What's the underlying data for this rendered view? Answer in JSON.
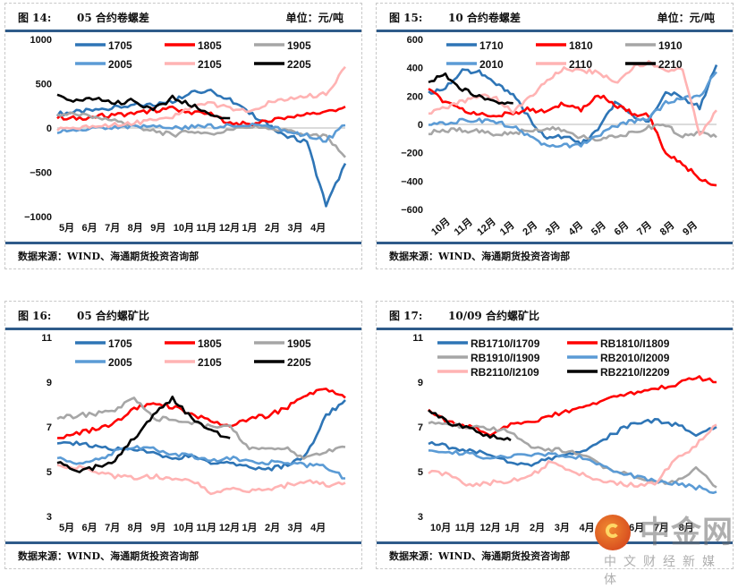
{
  "source_text": "数据来源：WIND、海通期货投资咨询部",
  "watermark": {
    "brand": "中金网",
    "sub": "中文财经新媒体",
    "overlay": "海通期货"
  },
  "chart_data": [
    {
      "id": "fig14",
      "figure_no": "图 14:",
      "title": "05 合约卷螺差",
      "unit": "单位：元/吨",
      "type": "line",
      "ylim": [
        -1000,
        1000
      ],
      "yticks": [
        1000,
        500,
        0,
        -500,
        -1000
      ],
      "xticks": [
        "5月",
        "6月",
        "7月",
        "8月",
        "9月",
        "10月",
        "11月",
        "12月",
        "1月",
        "2月",
        "3月",
        "4月"
      ],
      "x_rotated": false,
      "zero_line": true,
      "legend_cols": 3,
      "series": [
        {
          "name": "1705",
          "color": "#2e75b6",
          "values": [
            160,
            180,
            200,
            230,
            260,
            260,
            300,
            420,
            420,
            320,
            170,
            40,
            -100,
            -150,
            -880,
            -400
          ]
        },
        {
          "name": "1805",
          "color": "#ff0000",
          "values": [
            120,
            110,
            130,
            150,
            160,
            200,
            220,
            180,
            150,
            60,
            40,
            80,
            120,
            150,
            180,
            240
          ]
        },
        {
          "name": "1905",
          "color": "#a6a6a6",
          "values": [
            150,
            160,
            120,
            80,
            20,
            -30,
            -80,
            -40,
            -60,
            -30,
            20,
            -10,
            -40,
            -80,
            -100,
            -330
          ]
        },
        {
          "name": "2005",
          "color": "#5b9bd5",
          "values": [
            -40,
            -30,
            -10,
            0,
            10,
            20,
            0,
            10,
            20,
            30,
            40,
            20,
            -40,
            -80,
            -140,
            30
          ]
        },
        {
          "name": "2105",
          "color": "#ffb3b3",
          "values": [
            -10,
            0,
            20,
            40,
            60,
            80,
            120,
            230,
            280,
            220,
            180,
            280,
            320,
            360,
            380,
            690
          ]
        },
        {
          "name": "2205",
          "color": "#000000",
          "values": [
            370,
            300,
            330,
            280,
            310,
            200,
            340,
            260,
            150,
            110,
            null,
            null,
            null,
            null,
            null,
            null
          ]
        }
      ]
    },
    {
      "id": "fig15",
      "figure_no": "图 15:",
      "title": "10 合约卷螺差",
      "unit": "单位：元/吨",
      "type": "line",
      "ylim": [
        -600,
        600
      ],
      "yticks": [
        600,
        400,
        200,
        0,
        -200,
        -400,
        -600
      ],
      "xticks": [
        "10月",
        "11月",
        "12月",
        "1月",
        "2月",
        "3月",
        "4月",
        "5月",
        "6月",
        "7月",
        "8月",
        "9月"
      ],
      "x_rotated": true,
      "zero_line": true,
      "legend_cols": 3,
      "series": [
        {
          "name": "1710",
          "color": "#2e75b6",
          "values": [
            220,
            260,
            380,
            370,
            280,
            220,
            30,
            -100,
            -80,
            -140,
            -40,
            150,
            60,
            30,
            230,
            190,
            120,
            420
          ]
        },
        {
          "name": "1810",
          "color": "#ff0000",
          "values": [
            250,
            150,
            100,
            80,
            60,
            80,
            110,
            80,
            150,
            100,
            210,
            140,
            80,
            60,
            -200,
            -280,
            -380,
            -430
          ]
        },
        {
          "name": "1910",
          "color": "#a6a6a6",
          "values": [
            -60,
            -40,
            -40,
            -50,
            -70,
            -60,
            -40,
            -30,
            -40,
            -90,
            -110,
            -80,
            -60,
            -20,
            0,
            -90,
            -50,
            -90
          ]
        },
        {
          "name": "2010",
          "color": "#5b9bd5",
          "values": [
            0,
            10,
            30,
            30,
            20,
            -20,
            -80,
            -160,
            -150,
            -150,
            -80,
            -10,
            20,
            50,
            150,
            180,
            200,
            370
          ]
        },
        {
          "name": "2110",
          "color": "#ffb3b3",
          "values": [
            80,
            120,
            160,
            210,
            180,
            80,
            200,
            300,
            400,
            380,
            370,
            290,
            400,
            440,
            380,
            400,
            -80,
            100
          ]
        },
        {
          "name": "2210",
          "color": "#000000",
          "values": [
            300,
            350,
            250,
            200,
            160,
            150,
            null,
            null,
            null,
            null,
            null,
            null,
            null,
            null,
            null,
            null,
            null,
            null
          ]
        }
      ]
    },
    {
      "id": "fig16",
      "figure_no": "图 16:",
      "title": "05 合约螺矿比",
      "unit": "",
      "type": "line",
      "ylim": [
        3,
        11
      ],
      "yticks": [
        11,
        9,
        7,
        5,
        3
      ],
      "xticks": [
        "5月",
        "6月",
        "7月",
        "8月",
        "9月",
        "10月",
        "11月",
        "12月",
        "1月",
        "2月",
        "3月",
        "4月"
      ],
      "x_rotated": false,
      "zero_line": false,
      "legend_cols": 3,
      "series": [
        {
          "name": "1705",
          "color": "#2e75b6",
          "values": [
            6.2,
            6.3,
            6.1,
            6.0,
            6.0,
            5.8,
            5.6,
            5.7,
            5.4,
            5.4,
            5.2,
            5.1,
            5.3,
            5.8,
            7.5,
            8.2
          ]
        },
        {
          "name": "1805",
          "color": "#ff0000",
          "values": [
            6.5,
            6.7,
            6.9,
            7.2,
            7.8,
            8.1,
            7.9,
            7.6,
            7.2,
            7.0,
            7.4,
            7.5,
            7.9,
            8.4,
            8.7,
            8.3
          ]
        },
        {
          "name": "1905",
          "color": "#a6a6a6",
          "values": [
            7.4,
            7.5,
            7.6,
            7.7,
            8.3,
            7.4,
            7.3,
            7.2,
            7.0,
            7.0,
            6.0,
            6.1,
            6.0,
            5.6,
            5.9,
            6.1
          ]
        },
        {
          "name": "2005",
          "color": "#5b9bd5",
          "values": [
            5.6,
            5.4,
            5.5,
            5.9,
            6.1,
            6.0,
            5.8,
            5.7,
            5.5,
            5.6,
            5.5,
            5.4,
            5.4,
            5.3,
            5.2,
            4.7
          ]
        },
        {
          "name": "2105",
          "color": "#ffb3b3",
          "values": [
            5.3,
            5.2,
            5.0,
            4.8,
            4.7,
            4.8,
            4.7,
            4.6,
            4.1,
            4.2,
            4.1,
            4.2,
            4.4,
            4.6,
            4.4,
            4.5
          ]
        },
        {
          "name": "2205",
          "color": "#000000",
          "values": [
            5.4,
            5.0,
            5.2,
            5.5,
            6.5,
            7.5,
            8.3,
            7.4,
            6.8,
            6.5,
            null,
            null,
            null,
            null,
            null,
            null
          ]
        }
      ]
    },
    {
      "id": "fig17",
      "figure_no": "图 17:",
      "title": "10/09 合约螺矿比",
      "unit": "",
      "type": "line",
      "ylim": [
        3,
        11
      ],
      "yticks": [
        11,
        9,
        7,
        5,
        3
      ],
      "xticks": [
        "10月",
        "11月",
        "12月",
        "1月",
        "2月",
        "3月",
        "4月",
        "5月",
        "6月",
        "7月",
        "8月"
      ],
      "x_rotated": false,
      "zero_line": false,
      "legend_cols": 2,
      "series": [
        {
          "name": "RB1710/I1709",
          "color": "#2e75b6",
          "values": [
            6.3,
            6.1,
            5.9,
            5.8,
            5.4,
            5.3,
            5.6,
            5.8,
            6.1,
            6.7,
            7.2,
            7.3,
            7.1,
            6.7,
            7.0
          ]
        },
        {
          "name": "RB1810/I1809",
          "color": "#ff0000",
          "values": [
            7.8,
            7.2,
            7.0,
            6.7,
            7.1,
            7.2,
            7.5,
            7.8,
            8.0,
            8.3,
            8.5,
            8.7,
            8.9,
            9.2,
            9.0
          ]
        },
        {
          "name": "RB1910/I1909",
          "color": "#a6a6a6",
          "values": [
            7.2,
            7.1,
            7.0,
            6.9,
            6.8,
            6.1,
            6.0,
            5.9,
            5.5,
            5.0,
            4.8,
            4.6,
            4.5,
            5.2,
            4.3
          ]
        },
        {
          "name": "RB2010/I2009",
          "color": "#5b9bd5",
          "values": [
            6.0,
            5.9,
            5.8,
            5.6,
            5.7,
            5.7,
            5.8,
            5.7,
            5.5,
            5.0,
            4.8,
            4.6,
            4.5,
            4.3,
            4.1
          ]
        },
        {
          "name": "RB2110/I2109",
          "color": "#ffb3b3",
          "values": [
            5.0,
            4.9,
            4.4,
            4.5,
            4.6,
            4.8,
            5.5,
            5.0,
            4.7,
            4.5,
            4.4,
            4.5,
            5.5,
            6.2,
            7.1
          ]
        },
        {
          "name": "RB2210/I2209",
          "color": "#000000",
          "values": [
            7.8,
            7.2,
            6.9,
            6.6,
            6.4,
            null,
            null,
            null,
            null,
            null,
            null,
            null,
            null,
            null,
            null
          ]
        }
      ]
    }
  ]
}
